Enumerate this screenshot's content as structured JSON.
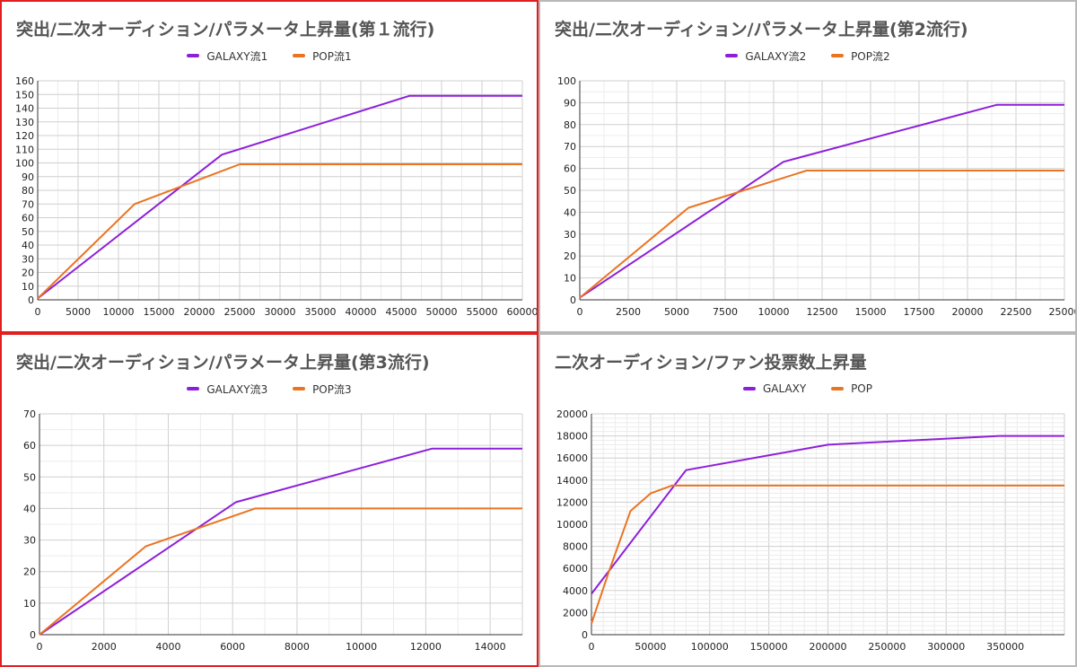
{
  "colors": {
    "galaxy": "#8e1fd9",
    "pop": "#ea7421",
    "panel_border_red": "#e02020",
    "panel_border_gray": "#b8b8b8"
  },
  "chart_data": [
    {
      "type": "line",
      "title": "突出/二次オーディション/パラメータ上昇量(第１流行)",
      "xlim": [
        0,
        60000
      ],
      "ylim": [
        0,
        160
      ],
      "xticks": [
        0,
        5000,
        10000,
        15000,
        20000,
        25000,
        30000,
        35000,
        40000,
        45000,
        50000,
        55000,
        60000
      ],
      "yticks": [
        0,
        10,
        20,
        30,
        40,
        50,
        60,
        70,
        80,
        90,
        100,
        110,
        120,
        130,
        140,
        150,
        160
      ],
      "minor_x": 2,
      "minor_y": 1,
      "legend_position": "top",
      "series": [
        {
          "name": "GALAXY流1",
          "color": "#8e1fd9",
          "points": [
            [
              0,
              1
            ],
            [
              22800,
              106
            ],
            [
              46000,
              149
            ],
            [
              60000,
              149
            ]
          ]
        },
        {
          "name": "POP流1",
          "color": "#ea7421",
          "points": [
            [
              0,
              1
            ],
            [
              12000,
              70
            ],
            [
              25000,
              99
            ],
            [
              60000,
              99
            ]
          ]
        }
      ]
    },
    {
      "type": "line",
      "title": "突出/二次オーディション/パラメータ上昇量(第2流行)",
      "xlim": [
        0,
        25000
      ],
      "ylim": [
        0,
        100
      ],
      "xticks": [
        0,
        2500,
        5000,
        7500,
        10000,
        12500,
        15000,
        17500,
        20000,
        22500,
        25000
      ],
      "yticks": [
        0,
        10,
        20,
        30,
        40,
        50,
        60,
        70,
        80,
        90,
        100
      ],
      "minor_x": 2,
      "minor_y": 2,
      "legend_position": "top",
      "series": [
        {
          "name": "GALAXY流2",
          "color": "#8e1fd9",
          "points": [
            [
              0,
              1
            ],
            [
              10500,
              63
            ],
            [
              21500,
              89
            ],
            [
              25000,
              89
            ]
          ]
        },
        {
          "name": "POP流2",
          "color": "#ea7421",
          "points": [
            [
              0,
              1
            ],
            [
              5600,
              42
            ],
            [
              11700,
              59
            ],
            [
              25000,
              59
            ]
          ]
        }
      ]
    },
    {
      "type": "line",
      "title": "突出/二次オーディション/パラメータ上昇量(第3流行)",
      "xlim": [
        0,
        15000
      ],
      "ylim": [
        0,
        70
      ],
      "xticks": [
        0,
        2000,
        4000,
        6000,
        8000,
        10000,
        12000,
        14000
      ],
      "yticks": [
        0,
        10,
        20,
        30,
        40,
        50,
        60,
        70
      ],
      "minor_x": 2,
      "minor_y": 2,
      "legend_position": "top",
      "series": [
        {
          "name": "GALAXY流3",
          "color": "#8e1fd9",
          "points": [
            [
              0,
              0
            ],
            [
              6100,
              42
            ],
            [
              12200,
              59
            ],
            [
              15000,
              59
            ]
          ]
        },
        {
          "name": "POP流3",
          "color": "#ea7421",
          "points": [
            [
              0,
              0
            ],
            [
              3300,
              28
            ],
            [
              6700,
              40
            ],
            [
              15000,
              40
            ]
          ]
        }
      ]
    },
    {
      "type": "line",
      "title": "二次オーディション/ファン投票数上昇量",
      "xlim": [
        0,
        400000
      ],
      "ylim": [
        0,
        20000
      ],
      "xticks": [
        0,
        50000,
        100000,
        150000,
        200000,
        250000,
        300000,
        350000
      ],
      "yticks": [
        0,
        2000,
        4000,
        6000,
        8000,
        10000,
        12000,
        14000,
        16000,
        18000,
        20000
      ],
      "minor_x": 5,
      "minor_y": 5,
      "legend_position": "top",
      "series": [
        {
          "name": "GALAXY",
          "color": "#8e1fd9",
          "points": [
            [
              0,
              3700
            ],
            [
              80000,
              14900
            ],
            [
              200000,
              17200
            ],
            [
              345000,
              18000
            ],
            [
              400000,
              18000
            ]
          ]
        },
        {
          "name": "POP",
          "color": "#ea7421",
          "points": [
            [
              0,
              1000
            ],
            [
              15000,
              5800
            ],
            [
              33000,
              11200
            ],
            [
              50000,
              12800
            ],
            [
              68000,
              13500
            ],
            [
              400000,
              13500
            ]
          ]
        }
      ]
    }
  ]
}
